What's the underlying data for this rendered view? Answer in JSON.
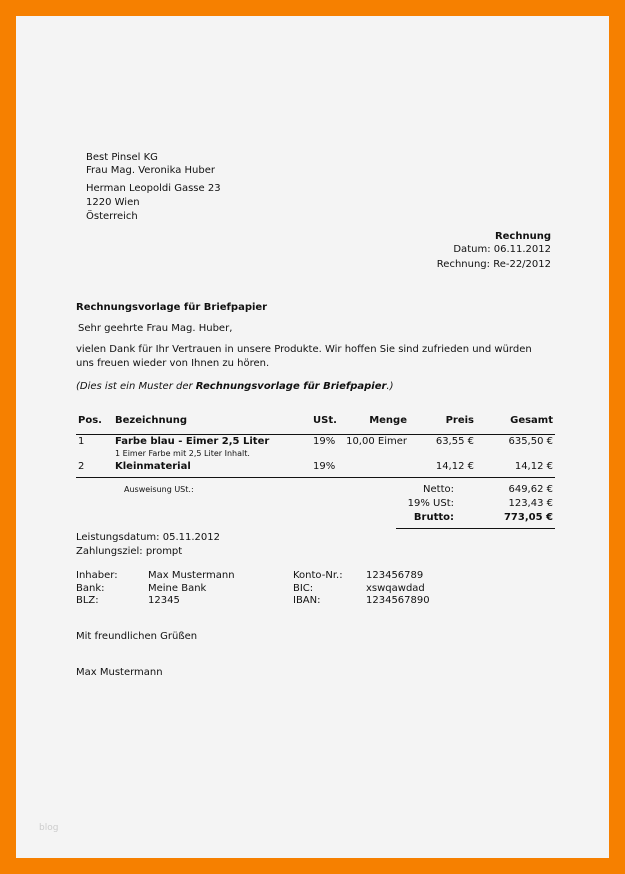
{
  "recipient": [
    "Best Pinsel KG",
    "Frau Mag. Veronika Huber",
    "Herman Leopoldi Gasse 23",
    "1220 Wien",
    "Österreich"
  ],
  "meta": {
    "heading": "Rechnung",
    "date": "Datum: 06.11.2012",
    "number": "Rechnung: Re-22/2012"
  },
  "subject": "Rechnungsvorlage für Briefpapier",
  "salutation": "Sehr geehrte Frau Mag. Huber,",
  "body": [
    "vielen Dank für Ihr Vertrauen in unsere Produkte. Wir hoffen Sie sind zufrieden und würden",
    "uns freuen wieder von Ihnen zu hören."
  ],
  "note": {
    "prefix": "(Dies ist ein Muster der ",
    "bold": "Rechnungsvorlage für Briefpapier",
    "suffix": ".)"
  },
  "table": {
    "headers": {
      "pos": "Pos.",
      "desc": "Bezeichnung",
      "vat": "USt.",
      "qty": "Menge",
      "price": "Preis",
      "total": "Gesamt"
    },
    "rows": [
      {
        "pos": "1",
        "desc": "Farbe blau - Eimer 2,5 Liter",
        "sub": "1 Eimer Farbe mit 2,5 Liter Inhalt.",
        "vat": "19%",
        "qty": "10,00 Eimer",
        "price": "63,55 €",
        "total": "635,50 €"
      },
      {
        "pos": "2",
        "desc": "Kleinmaterial",
        "vat": "19%",
        "qty": "",
        "price": "14,12 €",
        "total": "14,12 €"
      }
    ]
  },
  "summary": {
    "vat_note": "Ausweisung USt.:",
    "net_label": "Netto:",
    "net": "649,62 €",
    "vat_label": "19% USt:",
    "vat": "123,43 €",
    "gross_label": "Brutto:",
    "gross": "773,05 €"
  },
  "service_date": "Leistungsdatum: 05.11.2012",
  "payment": "Zahlungsziel: prompt",
  "bank": [
    {
      "l1": "Inhaber:",
      "v1": "Max Mustermann",
      "l2": "Konto-Nr.:",
      "v2": "123456789"
    },
    {
      "l1": "Bank:",
      "v1": "Meine Bank",
      "l2": "BIC:",
      "v2": "xswqawdad"
    },
    {
      "l1": "BLZ:",
      "v1": "12345",
      "l2": "IBAN:",
      "v2": "1234567890"
    }
  ],
  "closing": "Mit freundlichen Grüßen",
  "signature": "Max Mustermann",
  "watermark": "blog",
  "colors": {
    "border": "#f68000",
    "paper": "#f4f4f4"
  }
}
